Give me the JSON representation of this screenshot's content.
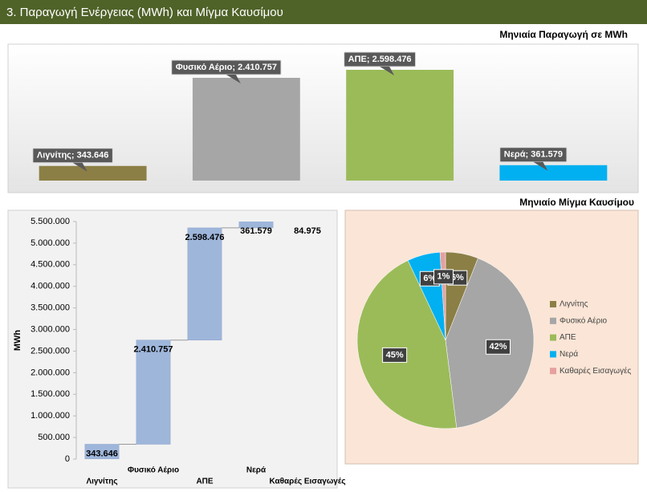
{
  "header": {
    "title": "3. Παραγωγή Ενέργειας (MWh) και Μίγμα Καυσίμου"
  },
  "chart_data": [
    {
      "type": "bar",
      "title": "Μηνιαία Παραγωγή σε MWh",
      "categories": [
        "Λιγνίτης",
        "Φυσικό Αέριο",
        "ΑΠΕ",
        "Νερά"
      ],
      "values": [
        343646,
        2410757,
        2598476,
        361579
      ],
      "value_labels": [
        "Λιγνίτης; 343.646",
        "Φυσικό Αέριο; 2.410.757",
        "ΑΠΕ; 2.598.476",
        "Νερά; 361.579"
      ],
      "colors": [
        "#8c7f45",
        "#a6a6a6",
        "#9bbb59",
        "#00b0f0"
      ]
    },
    {
      "type": "waterfall",
      "ylabel": "MWh",
      "categories": [
        "Λιγνίτης",
        "Φυσικό Αέριο",
        "ΑΠΕ",
        "Νερά",
        "Καθαρές Εισαγωγές"
      ],
      "values": [
        343646,
        2410757,
        2598476,
        361579,
        84975
      ],
      "value_labels": [
        "343.646",
        "2.410.757",
        "2.598.476",
        "361.579",
        "84.975"
      ],
      "color": "#9fb6db",
      "ylim": [
        0,
        5500000
      ],
      "yticks": [
        0,
        {
          "value": 500000,
          "label": "500.000"
        },
        {
          "value": 1000000,
          "label": "1.000.000"
        },
        {
          "value": 1500000,
          "label": "1.500.000"
        },
        {
          "value": 2000000,
          "label": "2.000.000"
        },
        {
          "value": 2500000,
          "label": "2.500.000"
        },
        {
          "value": 3000000,
          "label": "3.000.000"
        },
        {
          "value": 3500000,
          "label": "3.500.000"
        },
        {
          "value": 4000000,
          "label": "4.000.000"
        },
        {
          "value": 4500000,
          "label": "4.500.000"
        },
        {
          "value": 5000000,
          "label": "5.000.000"
        },
        {
          "value": 5500000,
          "label": "5.500.000"
        }
      ]
    },
    {
      "type": "pie",
      "title": "Μηνιαίο Μίγμα Καυσίμου",
      "categories": [
        "Λιγνίτης",
        "Φυσικό Αέριο",
        "ΑΠΕ",
        "Νερά",
        "Καθαρές Εισαγωγές"
      ],
      "values": [
        6,
        42,
        45,
        6,
        1
      ],
      "value_labels": [
        "6%",
        "42%",
        "45%",
        "6%",
        "1%"
      ],
      "colors": [
        "#8c7f45",
        "#a6a6a6",
        "#9bbb59",
        "#00b0f0",
        "#e6a0a0"
      ],
      "legend": "right"
    }
  ]
}
